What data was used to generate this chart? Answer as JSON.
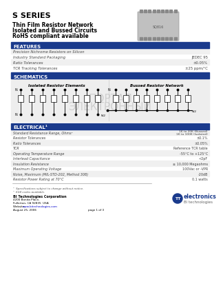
{
  "bg_color": "#ffffff",
  "title1": "S SERIES",
  "subtitle1": "Thin Film Resistor Network",
  "subtitle2": "Isolated and Bussed Circuits",
  "subtitle3": "RoHS compliant available",
  "section_features": "FEATURES",
  "section_schematics": "SCHEMATICS",
  "section_electrical": "ELECTRICAL¹",
  "section_header_bg": "#1a3a8c",
  "section_header_color": "#ffffff",
  "features": [
    [
      "Precision Nichrome Resistors on Silicon",
      ""
    ],
    [
      "Industry Standard Packaging",
      "JEDEC 95"
    ],
    [
      "Ratio Tolerances",
      "±0.05%"
    ],
    [
      "TCR Tracking Tolerances",
      "±25 ppm/°C"
    ]
  ],
  "electrical": [
    [
      "Standard Resistance Range, Ohms²",
      "1K to 100K (Isolated)\n1K to 20K (Bussed)"
    ],
    [
      "Resistor Tolerances",
      "±0.1%"
    ],
    [
      "Ratio Tolerances",
      "±0.05%"
    ],
    [
      "TCR",
      "Reference TCR table"
    ],
    [
      "Operating Temperature Range",
      "-55°C to +125°C"
    ],
    [
      "Interlead Capacitance",
      "<2pF"
    ],
    [
      "Insulation Resistance",
      "≥ 10,000 Megaohms"
    ],
    [
      "Maximum Operating Voltage",
      "100Vac or -VPR"
    ],
    [
      "Noise, Maximum (MIL-STD-202, Method 308)",
      "-20dB"
    ],
    [
      "Resistor Power Rating at 70°C",
      "0.1 watts"
    ]
  ],
  "schem_left_title": "Isolated Resistor Elements",
  "schem_right_title": "Bussed Resistor Network",
  "footer_note1": "¹  Specifications subject to change without notice.",
  "footer_note2": "²  E24 codes available.",
  "company_name": "BI Technologies Corporation",
  "company_addr1": "4200 Bonita Place,",
  "company_addr2": "Fullerton, CA 92835  USA",
  "company_web_label": "Website:  ",
  "company_web": "www.bitechnologies.com",
  "company_date": "August 25, 2006",
  "page_label": "page 1 of 3",
  "logo_text": "electronics",
  "logo_sub": "BI technologies"
}
